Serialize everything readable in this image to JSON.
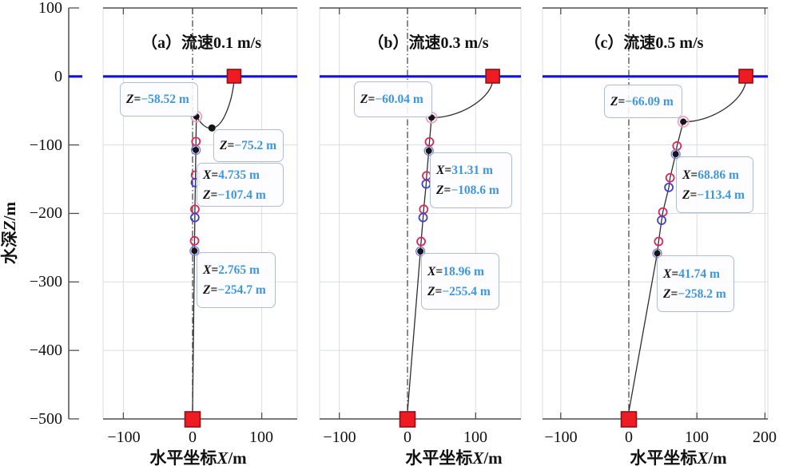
{
  "figure": {
    "eq": "=",
    "y_axis": {
      "label_prefix": "水深",
      "label_var": "Z",
      "label_suffix": "/m",
      "ticks": [
        "100",
        "0",
        "−100",
        "−200",
        "−300",
        "−400",
        "−500"
      ]
    },
    "x_axis": {
      "label_prefix": "水平坐标",
      "label_var": "X",
      "label_suffix": "/m"
    },
    "colors": {
      "surface_line": "#1212e0",
      "red_square": "#ee1b22",
      "red_circle": "#d8285e",
      "blue_circle": "#4040cf",
      "pink_ring": "#efa3c5",
      "annotation_value": "#3e97dd",
      "grid": "#d9dde0",
      "line": "#2e2e2e"
    }
  },
  "chart_data": [
    {
      "type": "line",
      "title": "（a）流速0.1 m/s",
      "xlabel": "水平坐标X/m",
      "ylabel": "水深Z/m",
      "xlim": [
        -129,
        151
      ],
      "ylim": [
        -500,
        100
      ],
      "xticks": [
        -100,
        0,
        100
      ],
      "xtick_labels": [
        "−100",
        "0",
        "100"
      ],
      "surface_z": 0,
      "ship_x": 60,
      "buoy": {
        "x": 5.5,
        "z": -58.52
      },
      "dip": {
        "x": 28,
        "z": -75.2
      },
      "array_markers": [
        {
          "x": 4.9,
          "z": -95,
          "type": "red"
        },
        {
          "x": 4.735,
          "z": -107.4,
          "type": "dot"
        },
        {
          "x": 4.2,
          "z": -144,
          "type": "red"
        },
        {
          "x": 4.1,
          "z": -155,
          "type": "blue"
        },
        {
          "x": 3.4,
          "z": -194,
          "type": "red"
        },
        {
          "x": 3.3,
          "z": -206,
          "type": "blue"
        },
        {
          "x": 2.9,
          "z": -240,
          "type": "red"
        },
        {
          "x": 2.765,
          "z": -254.7,
          "type": "dot"
        }
      ],
      "anchor": {
        "x": 0,
        "z": -500
      },
      "annotations": [
        {
          "point": "buoy",
          "lines": [
            {
              "name": "Z",
              "value": "−58.52 m"
            }
          ]
        },
        {
          "point": "cable-low-point",
          "lines": [
            {
              "name": "Z",
              "value": "−75.2 m"
            }
          ]
        },
        {
          "point": "upper-array-node",
          "lines": [
            {
              "name": "X",
              "value": "4.735 m"
            },
            {
              "name": "Z",
              "value": "−107.4 m"
            }
          ]
        },
        {
          "point": "lower-array-node",
          "lines": [
            {
              "name": "X",
              "value": "2.765 m"
            },
            {
              "name": "Z",
              "value": "−254.7 m"
            }
          ]
        }
      ]
    },
    {
      "type": "line",
      "title": "（b）流速0.3 m/s",
      "xlabel": "水平坐标X/m",
      "ylabel": "水深Z/m",
      "xlim": [
        -130,
        166
      ],
      "ylim": [
        -500,
        100
      ],
      "xticks": [
        -100,
        0,
        100
      ],
      "xtick_labels": [
        "−100",
        "0",
        "100"
      ],
      "surface_z": 0,
      "ship_x": 125,
      "buoy": {
        "x": 35.3,
        "z": -60.04
      },
      "array_markers": [
        {
          "x": 32.2,
          "z": -95.5,
          "type": "red"
        },
        {
          "x": 31.31,
          "z": -108.6,
          "type": "dot"
        },
        {
          "x": 28.1,
          "z": -145,
          "type": "red"
        },
        {
          "x": 27.4,
          "z": -157,
          "type": "blue"
        },
        {
          "x": 23.8,
          "z": -194,
          "type": "red"
        },
        {
          "x": 22.9,
          "z": -206,
          "type": "blue"
        },
        {
          "x": 20.0,
          "z": -241,
          "type": "red"
        },
        {
          "x": 18.96,
          "z": -255.4,
          "type": "dot"
        }
      ],
      "anchor": {
        "x": 0,
        "z": -500
      },
      "annotations": [
        {
          "point": "buoy",
          "lines": [
            {
              "name": "Z",
              "value": "−60.04 m"
            }
          ]
        },
        {
          "point": "upper-array-node",
          "lines": [
            {
              "name": "X",
              "value": "31.31 m"
            },
            {
              "name": "Z",
              "value": "−108.6 m"
            }
          ]
        },
        {
          "point": "lower-array-node",
          "lines": [
            {
              "name": "X",
              "value": "18.96 m"
            },
            {
              "name": "Z",
              "value": "−255.4 m"
            }
          ]
        }
      ]
    },
    {
      "type": "line",
      "title": "（c）流速0.5 m/s",
      "xlabel": "水平坐标X/m",
      "ylabel": "水深Z/m",
      "xlim": [
        -127,
        204
      ],
      "ylim": [
        -500,
        100
      ],
      "xticks": [
        -100,
        0,
        100,
        200
      ],
      "xtick_labels": [
        "−100",
        "0",
        "100",
        "200"
      ],
      "surface_z": 0,
      "ship_x": 172,
      "buoy": {
        "x": 80,
        "z": -66.09
      },
      "array_markers": [
        {
          "x": 70.8,
          "z": -101.5,
          "type": "red"
        },
        {
          "x": 68.86,
          "z": -113.4,
          "type": "dot"
        },
        {
          "x": 60.6,
          "z": -148,
          "type": "red"
        },
        {
          "x": 58.8,
          "z": -162,
          "type": "blue"
        },
        {
          "x": 50.0,
          "z": -198,
          "type": "red"
        },
        {
          "x": 48.2,
          "z": -210,
          "type": "blue"
        },
        {
          "x": 43.8,
          "z": -241,
          "type": "red"
        },
        {
          "x": 41.74,
          "z": -258.2,
          "type": "dot"
        }
      ],
      "anchor": {
        "x": 0,
        "z": -500
      },
      "annotations": [
        {
          "point": "buoy",
          "lines": [
            {
              "name": "Z",
              "value": "−66.09 m"
            }
          ]
        },
        {
          "point": "upper-array-node",
          "lines": [
            {
              "name": "X",
              "value": "68.86 m"
            },
            {
              "name": "Z",
              "value": "−113.4 m"
            }
          ]
        },
        {
          "point": "lower-array-node",
          "lines": [
            {
              "name": "X",
              "value": "41.74 m"
            },
            {
              "name": "Z",
              "value": "−258.2 m"
            }
          ]
        }
      ]
    }
  ]
}
